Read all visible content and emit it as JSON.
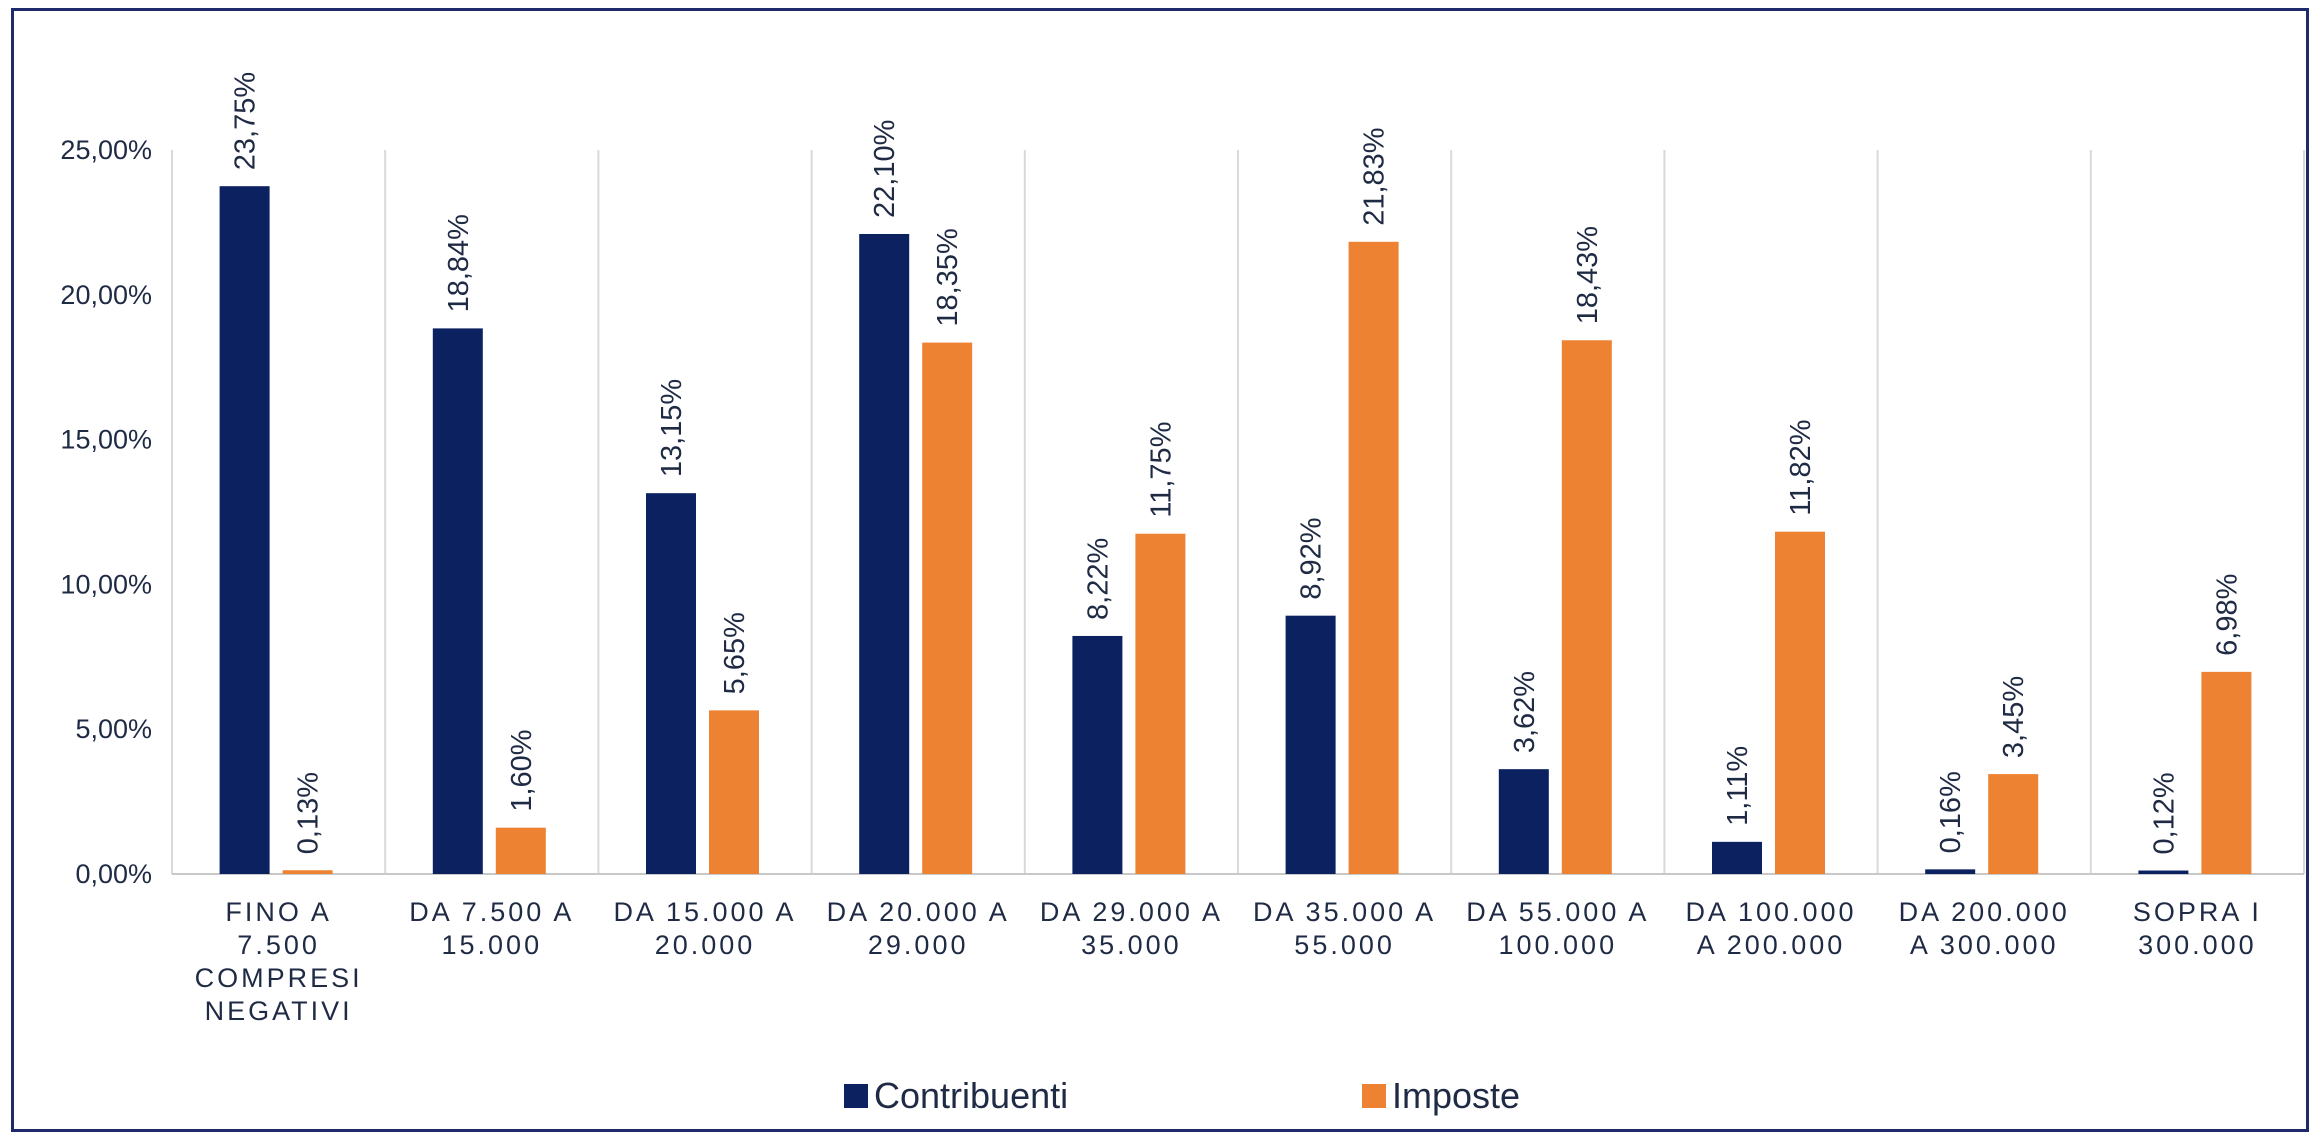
{
  "chart_data": {
    "type": "bar",
    "title": "",
    "xlabel": "",
    "ylabel": "",
    "ylim": [
      0,
      25
    ],
    "yticks": [
      "0,00%",
      "5,00%",
      "10,00%",
      "15,00%",
      "20,00%",
      "25,00%"
    ],
    "grid": "vertical",
    "legend_position": "bottom",
    "categories": [
      [
        "FINO A",
        "7.500",
        "COMPRESI",
        "NEGATIVI"
      ],
      [
        "DA 7.500 A",
        "15.000"
      ],
      [
        "DA 15.000 A",
        "20.000"
      ],
      [
        "DA 20.000 A",
        "29.000"
      ],
      [
        "DA 29.000 A",
        "35.000"
      ],
      [
        "DA 35.000 A",
        "55.000"
      ],
      [
        "DA 55.000 A",
        "100.000"
      ],
      [
        "DA 100.000",
        "A 200.000"
      ],
      [
        "DA 200.000",
        "A 300.000"
      ],
      [
        "SOPRA I",
        "300.000"
      ]
    ],
    "series": [
      {
        "name": "Contribuenti",
        "color": "#0b2160",
        "values": [
          23.75,
          18.84,
          13.15,
          22.1,
          8.22,
          8.92,
          3.62,
          1.11,
          0.16,
          0.12
        ],
        "labels": [
          "23,75%",
          "18,84%",
          "13,15%",
          "22,10%",
          "8,22%",
          "8,92%",
          "3,62%",
          "1,11%",
          "0,16%",
          "0,12%"
        ]
      },
      {
        "name": "Imposte",
        "color": "#ee8233",
        "values": [
          0.13,
          1.6,
          5.65,
          18.35,
          11.75,
          21.83,
          18.43,
          11.82,
          3.45,
          6.98
        ],
        "labels": [
          "0,13%",
          "1,60%",
          "5,65%",
          "18,35%",
          "11,75%",
          "21,83%",
          "18,43%",
          "11,82%",
          "3,45%",
          "6,98%"
        ]
      }
    ]
  }
}
